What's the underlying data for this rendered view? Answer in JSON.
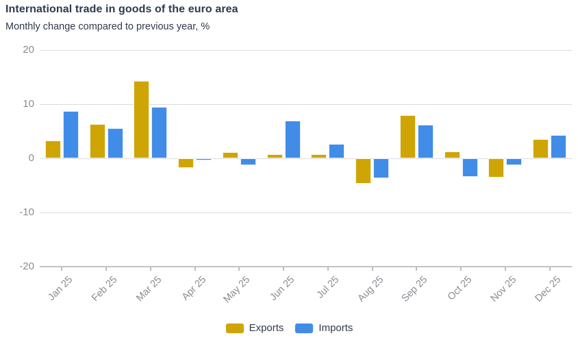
{
  "header": {
    "title": "International trade in goods of the euro area",
    "subtitle": "Monthly change compared to previous year, %"
  },
  "colors": {
    "exports": "#CEA505",
    "imports": "#418CE7",
    "title_text": "#2E3A4D",
    "axis_text": "#8B8B93",
    "gridline": "#DCDCE0",
    "axis_line": "#C2C2C8",
    "background": "#FFFFFF"
  },
  "chart_data": {
    "type": "bar",
    "title": "International trade in goods of the euro area",
    "subtitle": "Monthly change compared to previous year, %",
    "categories": [
      "Jan 25",
      "Feb 25",
      "Mar 25",
      "Apr 25",
      "May 25",
      "Jun 25",
      "Jul 25",
      "Aug 25",
      "Sep 25",
      "Oct 25",
      "Nov 25",
      "Dec 25"
    ],
    "series": [
      {
        "name": "Exports",
        "color": "#CEA505",
        "values": [
          3.3,
          6.3,
          14.3,
          -1.8,
          1.2,
          0.8,
          0.7,
          -4.7,
          8.0,
          1.3,
          -3.5,
          3.6
        ]
      },
      {
        "name": "Imports",
        "color": "#418CE7",
        "values": [
          8.7,
          5.6,
          9.5,
          -0.4,
          -1.3,
          6.9,
          2.7,
          -3.7,
          6.2,
          -3.4,
          -1.3,
          4.3
        ]
      }
    ],
    "xlabel": "",
    "ylabel": "",
    "ylim": [
      -20,
      20
    ],
    "yticks": [
      20,
      10,
      0,
      -10,
      -20
    ],
    "grid": true,
    "legend_position": "bottom"
  },
  "legend": {
    "items": [
      {
        "label": "Exports",
        "color": "#CEA505"
      },
      {
        "label": "Imports",
        "color": "#418CE7"
      }
    ]
  }
}
